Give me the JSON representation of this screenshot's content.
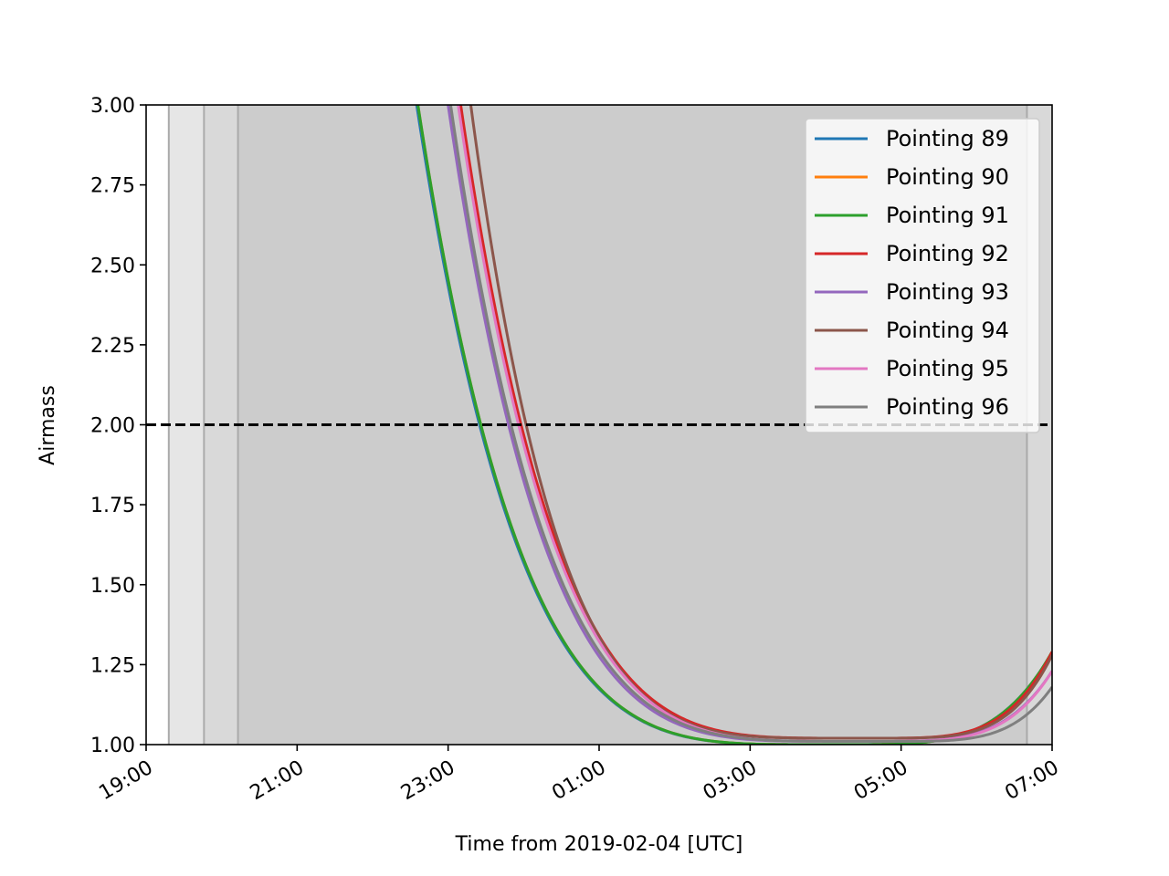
{
  "chart_data": {
    "type": "line",
    "title": "",
    "xlabel": "Time from 2019-02-04 [UTC]",
    "ylabel": "Airmass",
    "x_unit": "hours",
    "xlim": [
      "19:00",
      "07:00"
    ],
    "ylim": [
      1.0,
      3.0
    ],
    "x_ticks": [
      "19:00",
      "21:00",
      "23:00",
      "01:00",
      "03:00",
      "05:00",
      "07:00"
    ],
    "y_ticks": [
      "1.00",
      "1.25",
      "1.50",
      "1.75",
      "2.00",
      "2.25",
      "2.50",
      "2.75",
      "3.00"
    ],
    "twilight_bands": [
      {
        "start": "19:00",
        "end": "19:18",
        "color": "#ffffff"
      },
      {
        "start": "19:18",
        "end": "19:46",
        "color": "#e6e6e6"
      },
      {
        "start": "19:46",
        "end": "20:13",
        "color": "#d9d9d9"
      },
      {
        "start": "20:13",
        "end": "06:40",
        "color": "#cccccc"
      },
      {
        "start": "06:40",
        "end": "07:00",
        "color": "#d9d9d9"
      }
    ],
    "twilight_lines": [
      "19:18",
      "19:46",
      "20:13",
      "06:40"
    ],
    "threshold": {
      "value": 2.0,
      "style": "dashed",
      "color": "#000000"
    },
    "legend_position": "upper-right",
    "grid": false,
    "series": [
      {
        "name": "Pointing 89",
        "color": "#1f77b4",
        "x_at_3": "22:35",
        "x_at_2": "23:25",
        "min_time": "04:05",
        "min_airmass": 1.0,
        "end_airmass": 1.29
      },
      {
        "name": "Pointing 90",
        "color": "#ff7f0e",
        "x_at_3": "22:36",
        "x_at_2": "23:26",
        "min_time": "04:06",
        "min_airmass": 1.0,
        "end_airmass": 1.29
      },
      {
        "name": "Pointing 91",
        "color": "#2ca02c",
        "x_at_3": "22:36",
        "x_at_2": "23:26",
        "min_time": "04:06",
        "min_airmass": 1.0,
        "end_airmass": 1.29
      },
      {
        "name": "Pointing 92",
        "color": "#d62728",
        "x_at_3": "23:10",
        "x_at_2": "23:58",
        "min_time": "04:30",
        "min_airmass": 1.02,
        "end_airmass": 1.29
      },
      {
        "name": "Pointing 93",
        "color": "#9467bd",
        "x_at_3": "23:00",
        "x_at_2": "23:48",
        "min_time": "04:25",
        "min_airmass": 1.01,
        "end_airmass": 1.23
      },
      {
        "name": "Pointing 94",
        "color": "#8c564b",
        "x_at_3": "23:18",
        "x_at_2": "24:02",
        "min_time": "04:30",
        "min_airmass": 1.02,
        "end_airmass": 1.28
      },
      {
        "name": "Pointing 95",
        "color": "#e377c2",
        "x_at_3": "23:08",
        "x_at_2": "23:56",
        "min_time": "04:30",
        "min_airmass": 1.01,
        "end_airmass": 1.23
      },
      {
        "name": "Pointing 96",
        "color": "#7f7f7f",
        "x_at_3": "23:02",
        "x_at_2": "23:50",
        "min_time": "04:40",
        "min_airmass": 1.01,
        "end_airmass": 1.18
      }
    ]
  }
}
